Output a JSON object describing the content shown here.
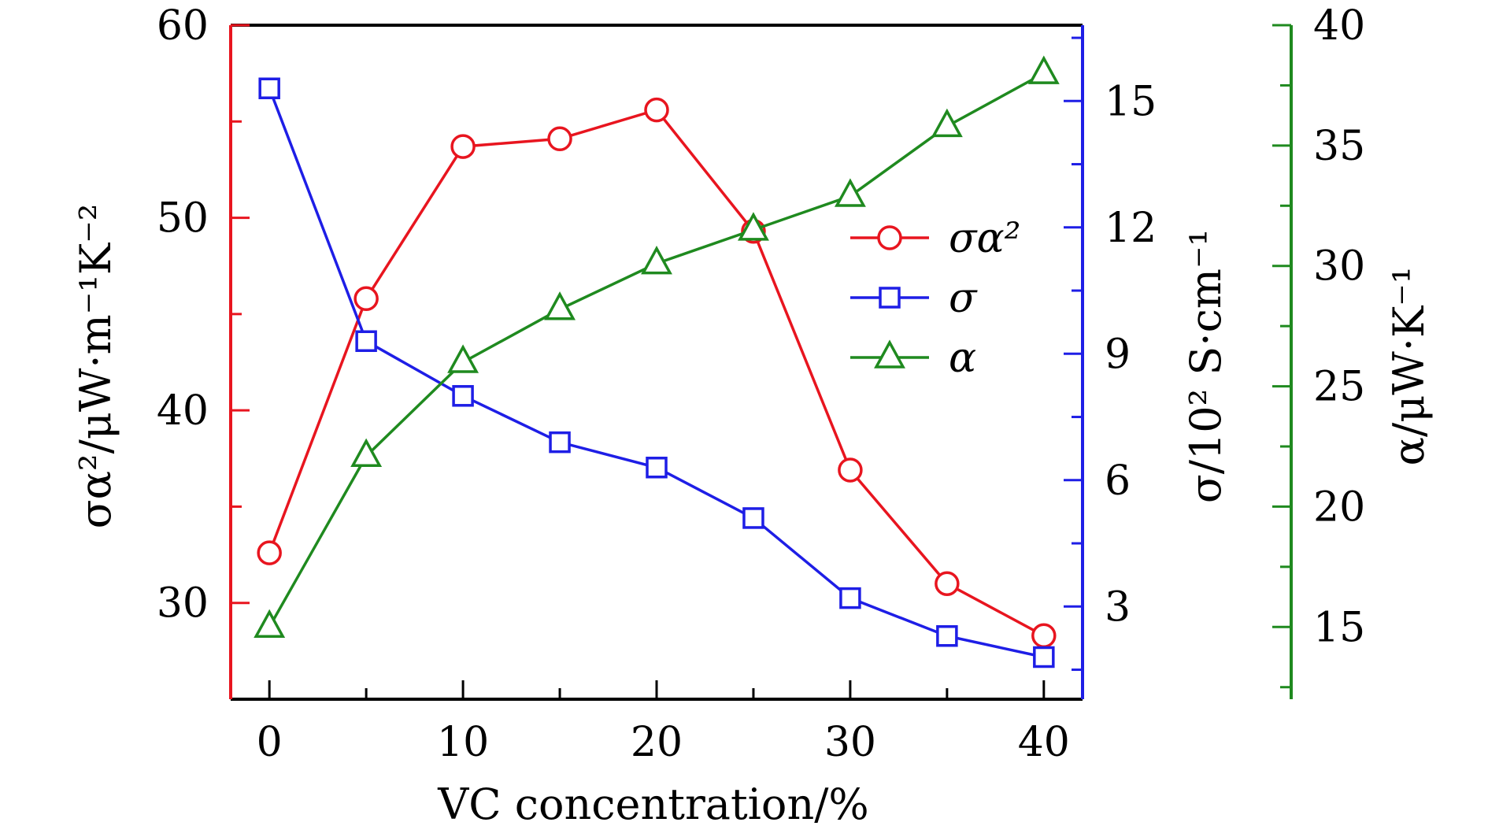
{
  "chart_data": {
    "type": "line",
    "x": [
      0,
      5,
      10,
      15,
      20,
      25,
      30,
      35,
      40
    ],
    "xlabel": "VC concentration/%",
    "xlim": [
      -2,
      42
    ],
    "xticks": [
      "0",
      "10",
      "20",
      "30",
      "40"
    ],
    "axes": {
      "left": {
        "label": "σα²/μW·m⁻¹K⁻²",
        "range": [
          25,
          60
        ],
        "ticks": [
          "30",
          "40",
          "50",
          "60"
        ],
        "color": "#e8151f"
      },
      "right": {
        "label": "σ/10² S·cm⁻¹",
        "range": [
          0.8,
          16.8
        ],
        "ticks": [
          "3",
          "6",
          "9",
          "12",
          "15"
        ],
        "color": "#1e1ee6"
      },
      "far_right": {
        "label": "α/μW·K⁻¹",
        "range": [
          12,
          40
        ],
        "ticks": [
          "15",
          "20",
          "25",
          "30",
          "35",
          "40"
        ],
        "color": "#1f8a1f"
      }
    },
    "series": [
      {
        "name": "σα²",
        "axis": "left",
        "marker": "circle",
        "color": "#e8151f",
        "values": [
          32.6,
          45.8,
          53.7,
          54.1,
          55.6,
          49.3,
          36.9,
          31.0,
          28.3
        ]
      },
      {
        "name": "σ",
        "axis": "right",
        "marker": "square",
        "color": "#1e1ee6",
        "values": [
          15.3,
          9.3,
          8.0,
          6.9,
          6.3,
          5.1,
          3.2,
          2.3,
          1.8
        ]
      },
      {
        "name": "α",
        "axis": "far_right",
        "marker": "triangle",
        "color": "#1f8a1f",
        "values": [
          15.0,
          22.1,
          26.0,
          28.2,
          30.1,
          31.5,
          32.9,
          35.8,
          38.0
        ]
      }
    ],
    "legend": {
      "position": "center-right",
      "labels": [
        "σα²",
        "σ",
        "α"
      ]
    },
    "grid": false
  }
}
